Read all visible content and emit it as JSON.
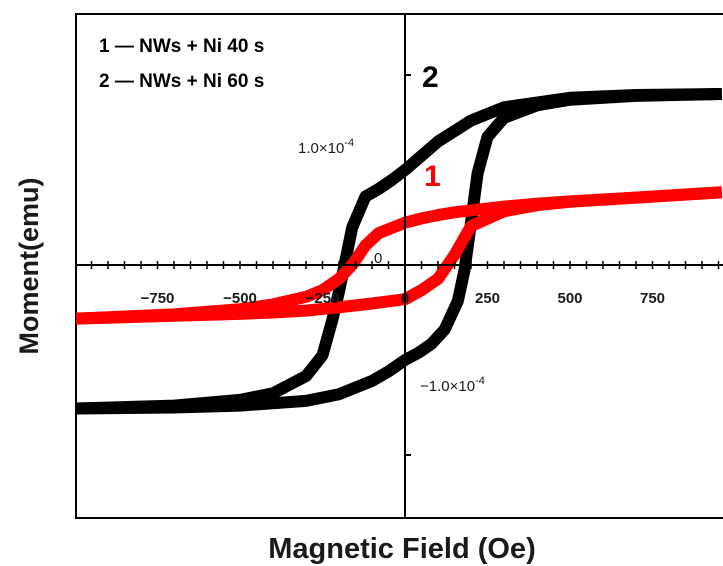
{
  "chart_data": {
    "type": "line",
    "xlabel": "Magnetic Field (Oe)",
    "ylabel": "Moment(emu)",
    "xlim": [
      -1000,
      960
    ],
    "ylim": [
      -0.00031,
      0.00031
    ],
    "x_ticks": [
      -750,
      -500,
      -250,
      0,
      250,
      500,
      750
    ],
    "y_ticks": [
      -0.0001,
      0,
      0.0001
    ],
    "y_tick_labels": [
      "−1.0×10",
      "0",
      "1.0×10"
    ],
    "y_tick_exponent": "-4",
    "grid": false,
    "legend": {
      "placement": "top-left",
      "entries": [
        "1 — NWs + Ni 40 s",
        "2 — NWs + Ni 60 s"
      ]
    },
    "series": [
      {
        "id": "1",
        "color": "#ff0000",
        "upper": {
          "x": [
            -1000,
            -700,
            -500,
            -400,
            -300,
            -250,
            -200,
            -160,
            -120,
            -80,
            -40,
            0,
            50,
            100,
            150,
            200,
            300,
            400,
            500,
            700,
            960
          ],
          "y": [
            -5.65e-05,
            -5.2e-05,
            -4.65e-05,
            -4.15e-05,
            -3.35e-05,
            -2.65e-05,
            -1.45e-05,
            0.0,
            2.05e-05,
            3.35e-05,
            3.9e-05,
            4.45e-05,
            4.9e-05,
            5.25e-05,
            5.55e-05,
            5.75e-05,
            6.15e-05,
            6.45e-05,
            6.7e-05,
            7.1e-05,
            7.65e-05
          ]
        },
        "lower": {
          "x": [
            960,
            700,
            500,
            400,
            300,
            200,
            150,
            100,
            50,
            0,
            -100,
            -200,
            -300,
            -400,
            -500,
            -700,
            -1000
          ],
          "y": [
            7.65e-05,
            7.1e-05,
            6.65e-05,
            6.3e-05,
            5.65e-05,
            4.1e-05,
            1.05e-05,
            -1.45e-05,
            -2.65e-05,
            -3.6e-05,
            -4.05e-05,
            -4.45e-05,
            -4.8e-05,
            -5e-05,
            -5.15e-05,
            -5.35e-05,
            -5.65e-05
          ]
        }
      },
      {
        "id": "2",
        "color": "#000000",
        "upper": {
          "x": [
            -1000,
            -700,
            -500,
            -400,
            -300,
            -250,
            -220,
            -200,
            -180,
            -160,
            -120,
            -80,
            -40,
            0,
            50,
            100,
            200,
            300,
            500,
            700,
            960
          ],
          "y": [
            -0.000151,
            -0.000148,
            -0.000142,
            -0.000135,
            -0.000117,
            -9.5e-05,
            -5.75e-05,
            -2.8e-05,
            5.5e-06,
            3.95e-05,
            7.2e-05,
            8e-05,
            8.95e-05,
            0.0001,
            0.000115,
            0.00013,
            0.000152,
            0.000166,
            0.000176,
            0.000179,
            0.00018
          ]
        },
        "lower": {
          "x": [
            960,
            700,
            500,
            400,
            300,
            250,
            220,
            200,
            180,
            160,
            120,
            80,
            40,
            0,
            -50,
            -100,
            -200,
            -300,
            -500,
            -700,
            -1000
          ],
          "y": [
            0.00018,
            0.000178,
            0.000174,
            0.000168,
            0.000155,
            0.000135,
            9.65e-05,
            4.45e-05,
            -6e-06,
            -3.8e-05,
            -6.8e-05,
            -8.3e-05,
            -9.25e-05,
            -0.0001,
            -0.000112,
            -0.000122,
            -0.000136,
            -0.000143,
            -0.000148,
            -0.00015,
            -0.000151
          ]
        }
      }
    ],
    "annotations": {
      "series_1_tag": "1",
      "series_2_tag": "2"
    }
  }
}
